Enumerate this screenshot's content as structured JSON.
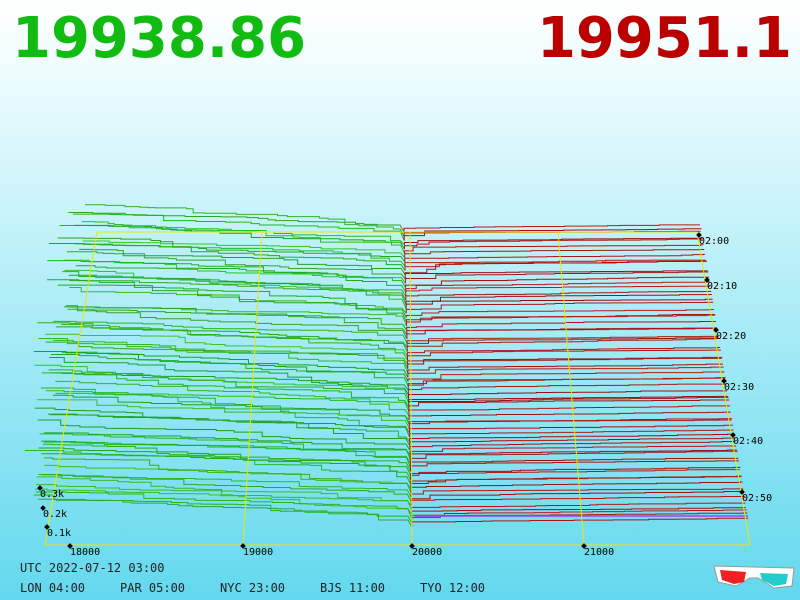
{
  "header": {
    "bid_price": "19938.86",
    "ask_price": "19951.1"
  },
  "price_axis": [
    "18000",
    "19000",
    "20000",
    "21000"
  ],
  "time_axis": [
    "02:00",
    "02:10",
    "02:20",
    "02:30",
    "02:40",
    "02:50"
  ],
  "depth_axis": [
    "0.3k",
    "0.2k",
    "0.1k"
  ],
  "footer": {
    "utc": "UTC 2022-07-12 03:00",
    "clocks": [
      "LON 04:00",
      "PAR 05:00",
      "NYC 23:00",
      "BJS 11:00",
      "TYO 12:00"
    ]
  }
}
